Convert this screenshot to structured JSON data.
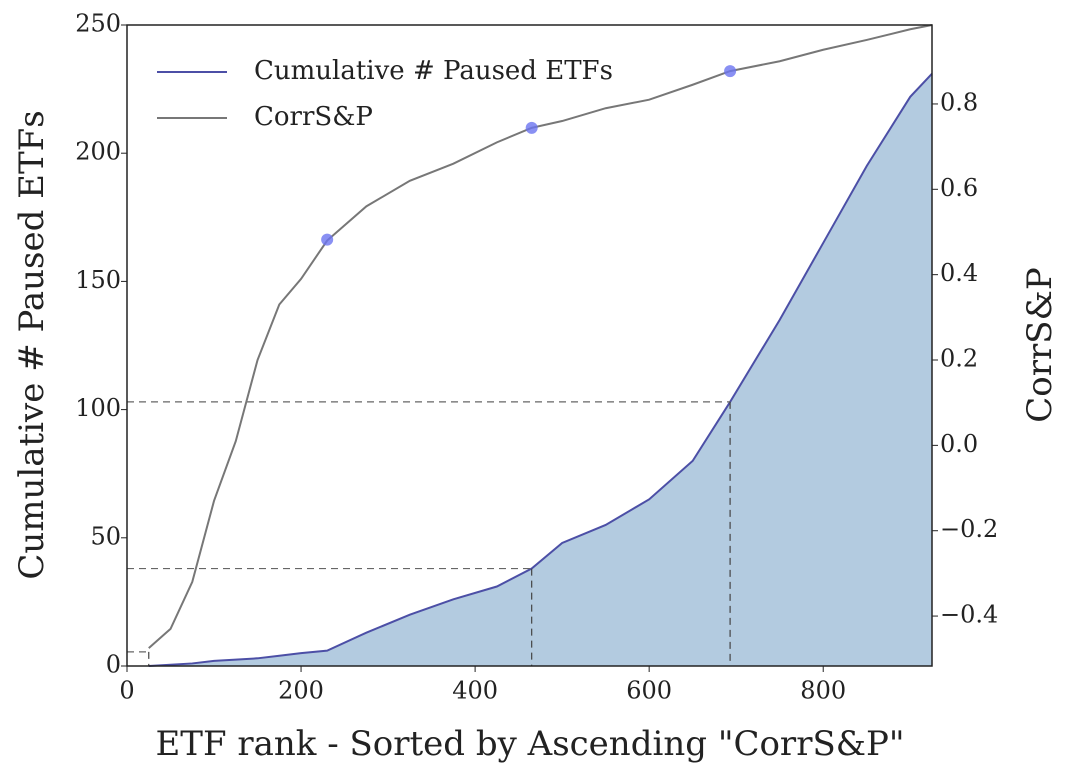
{
  "chart_data": {
    "type": "area-line",
    "x_label": "ETF rank - Sorted by Ascending \"CorrS&P\"",
    "y_label": "Cumulative # Paused ETFs",
    "y2_label": "CorrS&P",
    "x": [
      25,
      50,
      75,
      100,
      125,
      150,
      175,
      200,
      230,
      275,
      325,
      375,
      425,
      465,
      500,
      550,
      600,
      650,
      693,
      750,
      800,
      850,
      900,
      925
    ],
    "series": [
      {
        "name": "Cumulative # Paused ETFs",
        "color": "#4c4fa6",
        "fill": "#b3cbe0",
        "axis": "y",
        "values": [
          0,
          0.5,
          1,
          2,
          2.5,
          3,
          4,
          5,
          6,
          13,
          20,
          26,
          31,
          38,
          48,
          55,
          65,
          80,
          103,
          135,
          165,
          195,
          222,
          231
        ]
      },
      {
        "name": "CorrS&P",
        "color": "#777777",
        "axis": "y2",
        "values": [
          -0.475,
          -0.43,
          -0.32,
          -0.13,
          0.01,
          0.2,
          0.33,
          0.39,
          0.48,
          0.56,
          0.62,
          0.66,
          0.71,
          0.744,
          0.76,
          0.79,
          0.81,
          0.845,
          0.877,
          0.9,
          0.927,
          0.95,
          0.975,
          0.985
        ]
      }
    ],
    "markers": {
      "color": "#6b74f0",
      "x": [
        230,
        465,
        693
      ],
      "values": [
        0.482,
        0.744,
        0.877
      ]
    },
    "guides": {
      "x": [
        25,
        465,
        693
      ],
      "values": [
        5.5,
        38,
        103
      ]
    },
    "xlim": [
      0,
      925
    ],
    "xticks": [
      0,
      200,
      400,
      600,
      800
    ],
    "ylim": [
      0,
      250
    ],
    "yticks": [
      0,
      50,
      100,
      150,
      200,
      250
    ],
    "y2lim": [
      -0.517,
      0.985
    ],
    "y2ticks": [
      {
        "value": -0.4,
        "label": "−0.4"
      },
      {
        "value": -0.2,
        "label": "−0.2"
      },
      {
        "value": 0,
        "label": "0.0"
      },
      0.2,
      0.4,
      0.6,
      0.8
    ],
    "legend": "upper left"
  }
}
